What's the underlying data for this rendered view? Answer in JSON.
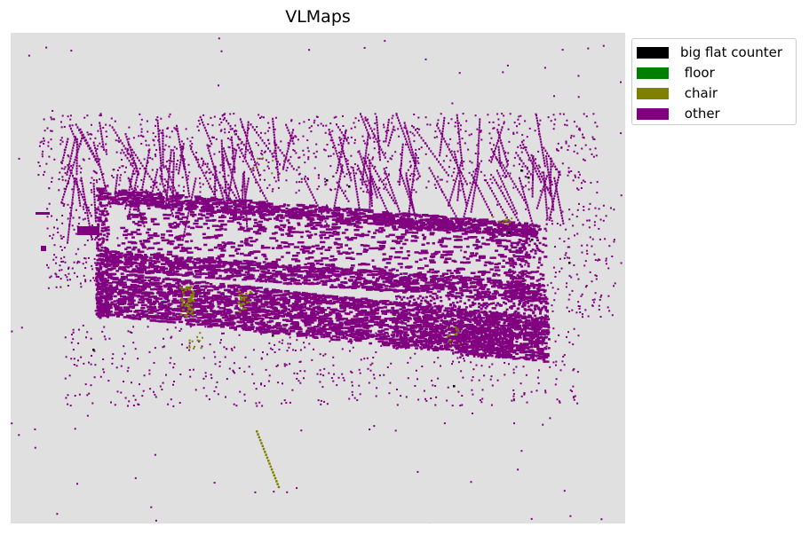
{
  "title": "VLMaps",
  "background_color": "#e0e0e0",
  "legend": {
    "placement": "outside-top-right",
    "items": [
      {
        "label": "big flat counter",
        "color": "#000000"
      },
      {
        "label": " floor",
        "color": "#008000"
      },
      {
        "label": " chair",
        "color": "#808000"
      },
      {
        "label": " other",
        "color": "#800080"
      }
    ]
  }
}
